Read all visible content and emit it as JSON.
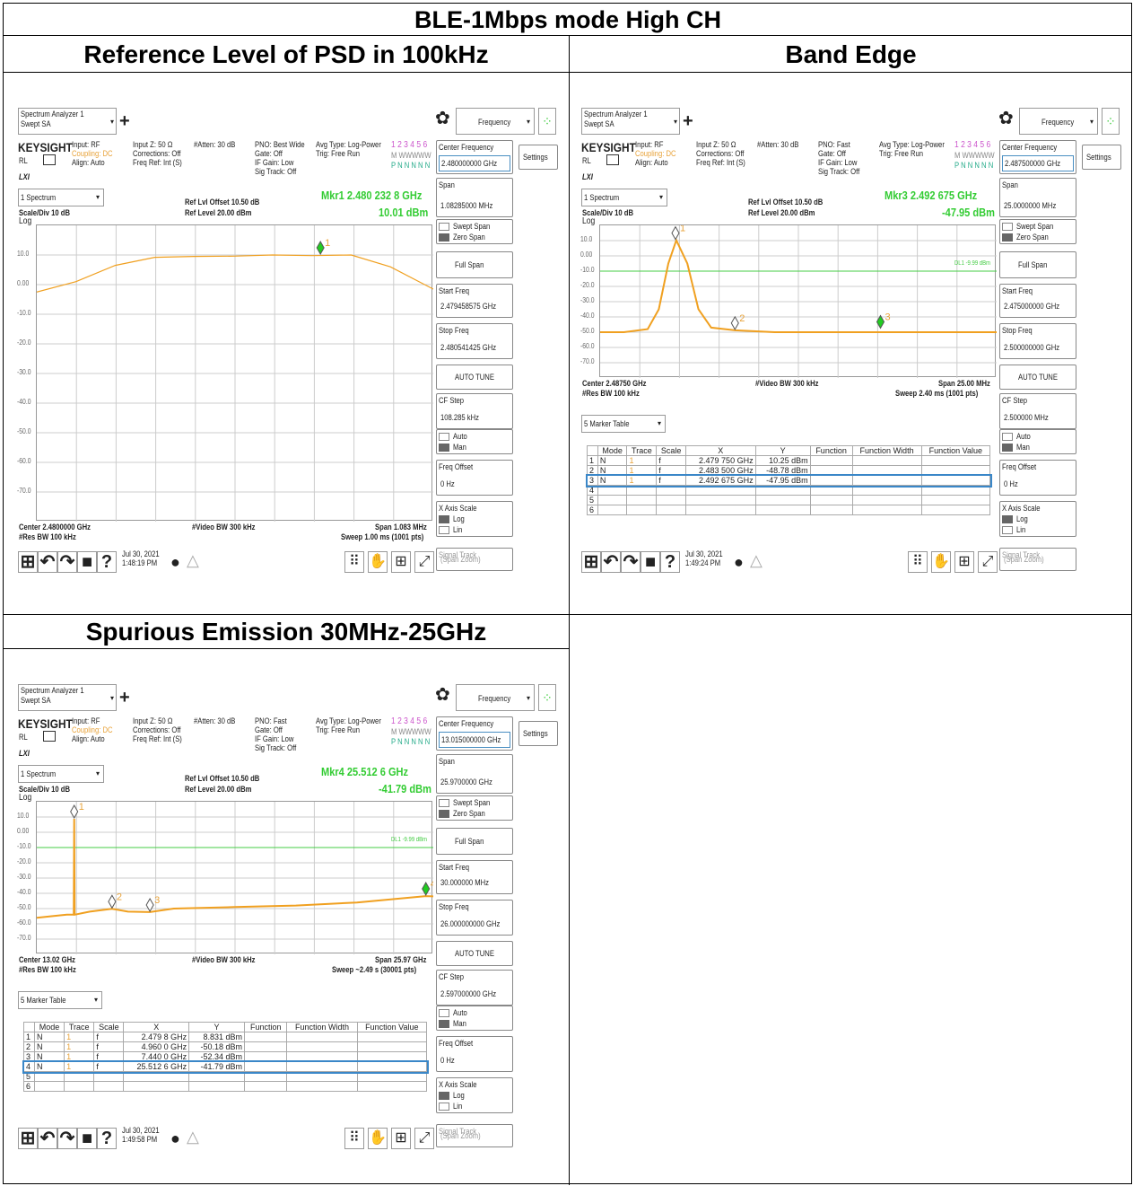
{
  "header": "BLE-1Mbps mode High CH",
  "panels": [
    {
      "id": "psd",
      "title": "Reference Level of PSD in 100kHz",
      "app": {
        "name": "Spectrum Analyzer 1",
        "mode": "Swept SA",
        "menu": "Frequency",
        "brand": "KEYSIGHT"
      },
      "info": {
        "input": "Input: RF",
        "coupling": "Coupling: DC",
        "align": "Align: Auto",
        "inputz": "Input Z: 50 Ω",
        "corr": "Corrections: Off",
        "freqref": "Freq Ref: Int (S)",
        "atten": "#Atten: 30 dB",
        "pno": "PNO: Best Wide",
        "gate": "Gate: Off",
        "ifgain": "IF Gain: Low",
        "sigtrack": "Sig Track: Off",
        "avg": "Avg Type: Log-Power",
        "trig": "Trig: Free Run",
        "traces": "1 2 3 4 5 6",
        "trline2": "M WWWWW",
        "trline3": "P N N N N N"
      },
      "window": "1 Spectrum",
      "reflvloffset": "Ref Lvl Offset 10.50 dB",
      "reflevel": "Ref Level 20.00 dBm",
      "scale": "Scale/Div 10 dB",
      "log": "Log",
      "marker_readout": "Mkr1  2.480 232 8 GHz",
      "marker_value": "10.01 dBm",
      "yticks": [
        "10.0",
        "0.00",
        "-10.0",
        "-20.0",
        "-30.0",
        "-40.0",
        "-50.0",
        "-60.0",
        "-70.0"
      ],
      "bottom_left": "Center 2.4800000 GHz",
      "bottom_left2": "#Res BW 100 kHz",
      "bottom_mid": "#Video BW 300 kHz",
      "bottom_right": "Span 1.083 MHz",
      "bottom_right2": "Sweep 1.00 ms (1001 pts)",
      "date": "Jul 30, 2021",
      "time": "1:48:19 PM",
      "right": {
        "cf_label": "Center Frequency",
        "cf": "2.480000000 GHz",
        "settings": "Settings",
        "span_label": "Span",
        "span": "1.08285000 MHz",
        "swept": "Swept Span",
        "zero": "Zero Span",
        "full": "Full Span",
        "start_label": "Start Freq",
        "start": "2.479458575 GHz",
        "stop_label": "Stop Freq",
        "stop": "2.480541425 GHz",
        "autotune": "AUTO TUNE",
        "cfstep_label": "CF Step",
        "cfstep": "108.285 kHz",
        "auto": "Auto",
        "man": "Man",
        "foff_label": "Freq Offset",
        "foff": "0 Hz",
        "xaxis": "X Axis Scale",
        "logl": "Log",
        "linl": "Lin",
        "sigtrack": "Signal Track",
        "spanzoom": "(Span Zoom)"
      },
      "markers": [
        {
          "label": "1",
          "x_norm": 0.0
        }
      ],
      "chart_data": {
        "type": "line",
        "ylabel": "dBm",
        "ylim": [
          -80,
          20
        ],
        "x": [
          2.479459,
          2.479566,
          2.479673,
          2.479781,
          2.479888,
          2.479995,
          2.480102,
          2.48021,
          2.480317,
          2.480424,
          2.480541
        ],
        "y": [
          -2.5,
          1,
          6.5,
          9.2,
          9.5,
          9.6,
          10.0,
          9.8,
          10.0,
          6,
          -1.5
        ]
      }
    },
    {
      "id": "band",
      "title": "Band Edge",
      "app": {
        "name": "Spectrum Analyzer 1",
        "mode": "Swept SA",
        "menu": "Frequency",
        "brand": "KEYSIGHT"
      },
      "info": {
        "input": "Input: RF",
        "coupling": "Coupling: DC",
        "align": "Align: Auto",
        "inputz": "Input Z: 50 Ω",
        "corr": "Corrections: Off",
        "freqref": "Freq Ref: Int (S)",
        "atten": "#Atten: 30 dB",
        "pno": "PNO: Fast",
        "gate": "Gate: Off",
        "ifgain": "IF Gain: Low",
        "sigtrack": "Sig Track: Off",
        "avg": "Avg Type: Log-Power",
        "trig": "Trig: Free Run",
        "traces": "1 2 3 4 5 6",
        "trline2": "M WWWWW",
        "trline3": "P N N N N N"
      },
      "window": "1 Spectrum",
      "reflvloffset": "Ref Lvl Offset 10.50 dB",
      "reflevel": "Ref Level 20.00 dBm",
      "scale": "Scale/Div 10 dB",
      "log": "Log",
      "marker_readout": "Mkr3  2.492 675 GHz",
      "marker_value": "-47.95 dBm",
      "yticks": [
        "10.0",
        "0.00",
        "-10.0",
        "-20.0",
        "-30.0",
        "-40.0",
        "-50.0",
        "-60.0",
        "-70.0"
      ],
      "dl": "DL1 -9.99 dBm",
      "bottom_left": "Center 2.48750 GHz",
      "bottom_left2": "#Res BW 100 kHz",
      "bottom_mid": "#Video BW 300 kHz",
      "bottom_right": "Span 25.00 MHz",
      "bottom_right2": "Sweep 2.40 ms (1001 pts)",
      "table_window": "5 Marker Table",
      "table_headers": [
        "",
        "Mode",
        "Trace",
        "Scale",
        "X",
        "Y",
        "Function",
        "Function Width",
        "Function Value"
      ],
      "table_rows": [
        [
          "1",
          "N",
          "1",
          "f",
          "2.479 750 GHz",
          "10.25 dBm",
          "",
          "",
          ""
        ],
        [
          "2",
          "N",
          "1",
          "f",
          "2.483 500 GHz",
          "-48.78 dBm",
          "",
          "",
          ""
        ],
        [
          "3",
          "N",
          "1",
          "f",
          "2.492 675 GHz",
          "-47.95 dBm",
          "",
          "",
          ""
        ],
        [
          "4",
          "",
          "",
          "",
          "",
          "",
          "",
          "",
          ""
        ],
        [
          "5",
          "",
          "",
          "",
          "",
          "",
          "",
          "",
          ""
        ],
        [
          "6",
          "",
          "",
          "",
          "",
          "",
          "",
          "",
          ""
        ]
      ],
      "date": "Jul 30, 2021",
      "time": "1:49:24 PM",
      "right": {
        "cf_label": "Center Frequency",
        "cf": "2.487500000 GHz",
        "settings": "Settings",
        "span_label": "Span",
        "span": "25.0000000 MHz",
        "swept": "Swept Span",
        "zero": "Zero Span",
        "full": "Full Span",
        "start_label": "Start Freq",
        "start": "2.475000000 GHz",
        "stop_label": "Stop Freq",
        "stop": "2.500000000 GHz",
        "autotune": "AUTO TUNE",
        "cfstep_label": "CF Step",
        "cfstep": "2.500000 MHz",
        "auto": "Auto",
        "man": "Man",
        "foff_label": "Freq Offset",
        "foff": "0 Hz",
        "xaxis": "X Axis Scale",
        "logl": "Log",
        "linl": "Lin",
        "sigtrack": "Signal Track",
        "spanzoom": "(Span Zoom)"
      },
      "chart_data": {
        "type": "line",
        "ylabel": "dBm",
        "ylim": [
          -80,
          20
        ],
        "x": [
          2.475,
          2.4765,
          2.478,
          2.4787,
          2.4793,
          2.4798,
          2.4805,
          2.4812,
          2.482,
          2.4835,
          2.486,
          2.49,
          2.495,
          2.5
        ],
        "y": [
          -50,
          -50,
          -48,
          -35,
          -5,
          10.25,
          -5,
          -35,
          -47,
          -48.78,
          -50,
          -50,
          -50,
          -50
        ]
      }
    },
    {
      "id": "spur",
      "title": "Spurious Emission 30MHz-25GHz",
      "app": {
        "name": "Spectrum Analyzer 1",
        "mode": "Swept SA",
        "menu": "Frequency",
        "brand": "KEYSIGHT"
      },
      "info": {
        "input": "Input: RF",
        "coupling": "Coupling: DC",
        "align": "Align: Auto",
        "inputz": "Input Z: 50 Ω",
        "corr": "Corrections: Off",
        "freqref": "Freq Ref: Int (S)",
        "atten": "#Atten: 30 dB",
        "pno": "PNO: Fast",
        "gate": "Gate: Off",
        "ifgain": "IF Gain: Low",
        "sigtrack": "Sig Track: Off",
        "avg": "Avg Type: Log-Power",
        "trig": "Trig: Free Run",
        "traces": "1 2 3 4 5 6",
        "trline2": "M WWWWW",
        "trline3": "P N N N N N"
      },
      "window": "1 Spectrum",
      "reflvloffset": "Ref Lvl Offset 10.50 dB",
      "reflevel": "Ref Level 20.00 dBm",
      "scale": "Scale/Div 10 dB",
      "log": "Log",
      "marker_readout": "Mkr4  25.512 6 GHz",
      "marker_value": "-41.79 dBm",
      "yticks": [
        "10.0",
        "0.00",
        "-10.0",
        "-20.0",
        "-30.0",
        "-40.0",
        "-50.0",
        "-60.0",
        "-70.0"
      ],
      "dl": "DL1 -9.99 dBm",
      "bottom_left": "Center 13.02 GHz",
      "bottom_left2": "#Res BW 100 kHz",
      "bottom_mid": "#Video BW 300 kHz",
      "bottom_right": "Span 25.97 GHz",
      "bottom_right2": "Sweep ~2.49 s (30001 pts)",
      "table_window": "5 Marker Table",
      "table_headers": [
        "",
        "Mode",
        "Trace",
        "Scale",
        "X",
        "Y",
        "Function",
        "Function Width",
        "Function Value"
      ],
      "table_rows": [
        [
          "1",
          "N",
          "1",
          "f",
          "2.479 8 GHz",
          "8.831 dBm",
          "",
          "",
          ""
        ],
        [
          "2",
          "N",
          "1",
          "f",
          "4.960 0 GHz",
          "-50.18 dBm",
          "",
          "",
          ""
        ],
        [
          "3",
          "N",
          "1",
          "f",
          "7.440 0 GHz",
          "-52.34 dBm",
          "",
          "",
          ""
        ],
        [
          "4",
          "N",
          "1",
          "f",
          "25.512 6 GHz",
          "-41.79 dBm",
          "",
          "",
          ""
        ],
        [
          "5",
          "",
          "",
          "",
          "",
          "",
          "",
          "",
          ""
        ],
        [
          "6",
          "",
          "",
          "",
          "",
          "",
          "",
          "",
          ""
        ]
      ],
      "date": "Jul 30, 2021",
      "time": "1:49:58 PM",
      "right": {
        "cf_label": "Center Frequency",
        "cf": "13.015000000 GHz",
        "settings": "Settings",
        "span_label": "Span",
        "span": "25.9700000 GHz",
        "swept": "Swept Span",
        "zero": "Zero Span",
        "full": "Full Span",
        "start_label": "Start Freq",
        "start": "30.000000 MHz",
        "stop_label": "Stop Freq",
        "stop": "26.000000000 GHz",
        "autotune": "AUTO TUNE",
        "cfstep_label": "CF Step",
        "cfstep": "2.597000000 GHz",
        "auto": "Auto",
        "man": "Man",
        "foff_label": "Freq Offset",
        "foff": "0 Hz",
        "xaxis": "X Axis Scale",
        "logl": "Log",
        "linl": "Lin",
        "sigtrack": "Signal Track",
        "spanzoom": "(Span Zoom)"
      },
      "chart_data": {
        "type": "line",
        "ylabel": "dBm",
        "ylim": [
          -80,
          20
        ],
        "x": [
          0.03,
          1.0,
          2.0,
          2.45,
          2.48,
          2.51,
          3.5,
          4.96,
          6.0,
          7.44,
          9.0,
          13.0,
          17.0,
          21.0,
          25.5,
          26.0
        ],
        "y": [
          -56,
          -55,
          -54,
          -54,
          8.8,
          -54,
          -52,
          -50.2,
          -52,
          -52.3,
          -50,
          -49,
          -48,
          -46,
          -41.8,
          -42
        ]
      }
    }
  ]
}
